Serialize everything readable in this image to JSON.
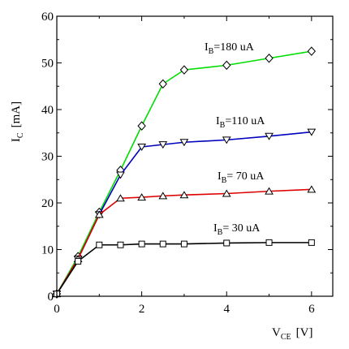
{
  "chart_data": {
    "type": "line",
    "title": "",
    "xlabel": {
      "main": "V",
      "sub": "CE",
      "unit": "[V]"
    },
    "ylabel": {
      "main": "I",
      "sub": "C",
      "unit": "[mA]"
    },
    "xlim": [
      0,
      6.5
    ],
    "ylim": [
      0,
      60
    ],
    "xticks": [
      0,
      2,
      4,
      6
    ],
    "yticks": [
      0,
      10,
      20,
      30,
      40,
      50,
      60
    ],
    "grid": false,
    "legend": "inline labels",
    "series": [
      {
        "label": {
          "main": "I",
          "sub": "B",
          "rest": "=180 uA"
        },
        "color": "#00dd00",
        "marker": "diamond",
        "x": [
          0,
          0.5,
          1,
          1.5,
          2,
          2.5,
          3,
          4,
          5,
          6
        ],
        "y": [
          0.5,
          8.5,
          18.0,
          27.0,
          36.5,
          45.5,
          48.5,
          49.5,
          51.0,
          52.5
        ]
      },
      {
        "label": {
          "main": "I",
          "sub": "B",
          "rest": "=110 uA"
        },
        "color": "#0000bb",
        "marker": "triangle-down",
        "x": [
          0,
          0.5,
          1,
          1.5,
          2,
          2.5,
          3,
          4,
          5,
          6
        ],
        "y": [
          0.5,
          8.0,
          17.5,
          26.0,
          32.0,
          32.5,
          33.0,
          33.5,
          34.3,
          35.2
        ]
      },
      {
        "label": {
          "main": "I",
          "sub": "B",
          "rest": "= 70 uA"
        },
        "color": "#dd0000",
        "marker": "triangle-up",
        "x": [
          0,
          0.5,
          1,
          1.5,
          2,
          2.5,
          3,
          4,
          5,
          6
        ],
        "y": [
          0.5,
          8.0,
          17.5,
          21.0,
          21.2,
          21.5,
          21.7,
          22.0,
          22.5,
          22.9
        ]
      },
      {
        "label": {
          "main": "I",
          "sub": "B",
          "rest": "= 30 uA"
        },
        "color": "#000000",
        "marker": "square",
        "x": [
          0,
          0.5,
          1,
          1.5,
          2,
          2.5,
          3,
          4,
          5,
          6
        ],
        "y": [
          0.5,
          7.5,
          11.0,
          11.0,
          11.2,
          11.2,
          11.2,
          11.4,
          11.5,
          11.5
        ]
      }
    ]
  }
}
